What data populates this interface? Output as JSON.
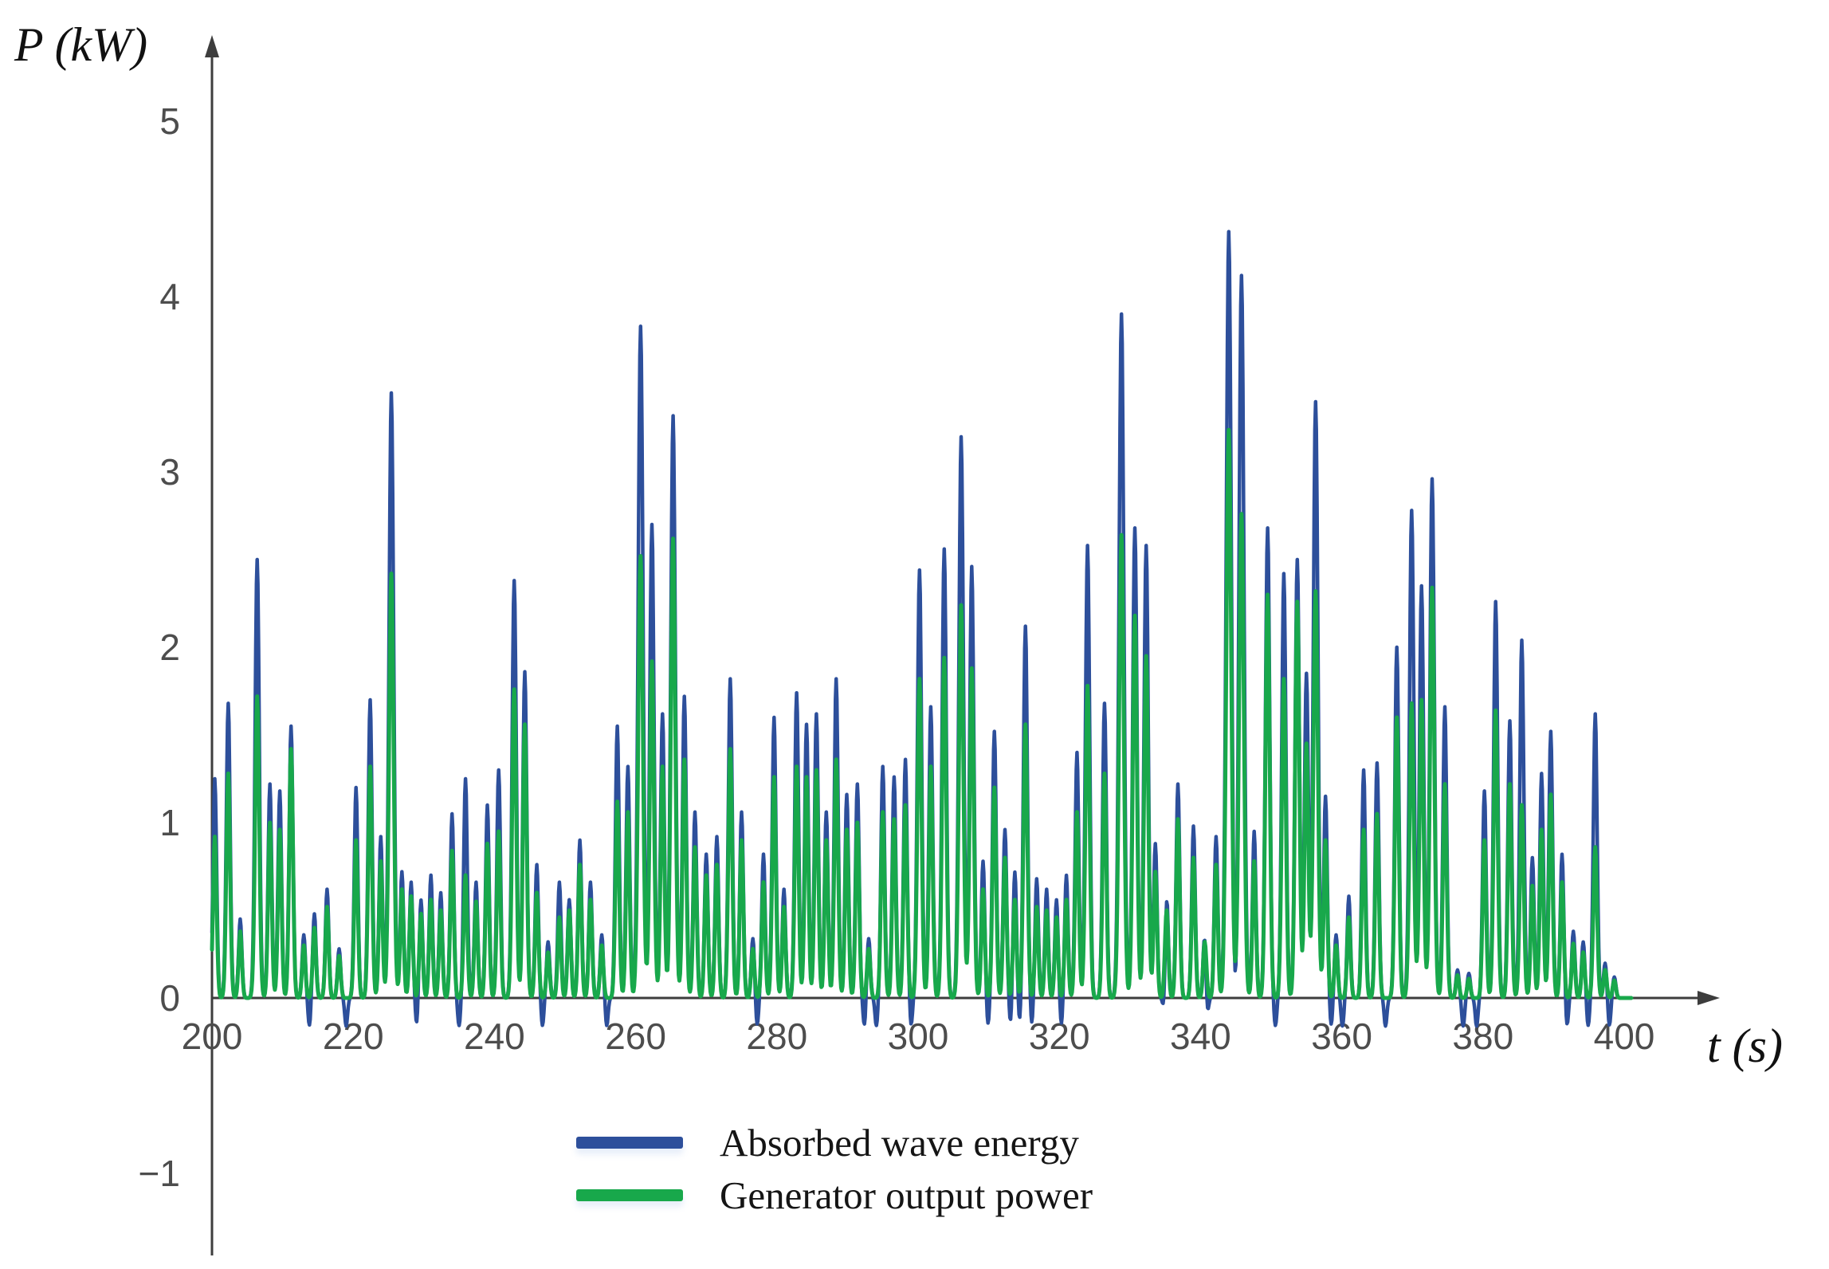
{
  "figure": {
    "background": "#ffffff",
    "axis_color": "#3d3d3d",
    "tick_label_color": "#4d4d4d"
  },
  "chart_data": {
    "type": "line",
    "title": "",
    "x_axis": {
      "title": "t (s)",
      "min": 200,
      "max": 400,
      "tick_values": [
        200,
        220,
        240,
        260,
        280,
        300,
        320,
        340,
        360,
        380,
        400
      ]
    },
    "y_axis": {
      "title": "P (kW)",
      "min": -1,
      "max": 5,
      "ticks": [
        {
          "value": 5,
          "label": "5"
        },
        {
          "value": 4,
          "label": "4"
        },
        {
          "value": 3,
          "label": "3"
        },
        {
          "value": 2,
          "label": "2"
        },
        {
          "value": 1,
          "label": "1"
        },
        {
          "value": 0,
          "label": "0"
        },
        {
          "value": -1,
          "label": "−1"
        }
      ]
    },
    "grid": false,
    "legend_position": "bottom",
    "series": [
      {
        "name": "Absorbed wave energy",
        "color": "#2D4F9B",
        "stroke_width": 4.5
      },
      {
        "name": "Generator output power",
        "color": "#18A84B",
        "stroke_width": 5
      }
    ],
    "pulses_format": [
      "t_s",
      "absorbed_kW_peak",
      "generator_kW_peak"
    ],
    "pulses": [
      [
        200.4,
        1.25,
        0.92
      ],
      [
        202.3,
        1.68,
        1.28
      ],
      [
        204.0,
        0.45,
        0.38
      ],
      [
        206.4,
        2.5,
        1.72
      ],
      [
        208.2,
        1.22,
        1.0
      ],
      [
        209.6,
        1.18,
        0.96
      ],
      [
        211.2,
        1.55,
        1.42
      ],
      [
        213.0,
        0.36,
        0.3
      ],
      [
        214.5,
        0.48,
        0.4
      ],
      [
        216.3,
        0.62,
        0.52
      ],
      [
        218.0,
        0.28,
        0.24
      ],
      [
        220.4,
        1.2,
        0.9
      ],
      [
        222.4,
        1.7,
        1.32
      ],
      [
        223.9,
        0.92,
        0.78
      ],
      [
        225.4,
        3.45,
        2.42
      ],
      [
        226.9,
        0.72,
        0.62
      ],
      [
        228.2,
        0.66,
        0.58
      ],
      [
        229.6,
        0.56,
        0.48
      ],
      [
        231.0,
        0.7,
        0.56
      ],
      [
        232.4,
        0.6,
        0.5
      ],
      [
        234.0,
        1.05,
        0.84
      ],
      [
        235.9,
        1.25,
        0.7
      ],
      [
        237.4,
        0.66,
        0.55
      ],
      [
        239.0,
        1.1,
        0.88
      ],
      [
        240.6,
        1.3,
        0.95
      ],
      [
        242.8,
        2.38,
        1.76
      ],
      [
        244.3,
        1.86,
        1.56
      ],
      [
        246.0,
        0.76,
        0.6
      ],
      [
        247.6,
        0.32,
        0.26
      ],
      [
        249.2,
        0.66,
        0.46
      ],
      [
        250.6,
        0.56,
        0.5
      ],
      [
        252.1,
        0.9,
        0.76
      ],
      [
        253.6,
        0.66,
        0.56
      ],
      [
        255.2,
        0.36,
        0.3
      ],
      [
        257.4,
        1.55,
        1.12
      ],
      [
        258.9,
        1.32,
        1.06
      ],
      [
        260.7,
        3.83,
        2.52
      ],
      [
        262.3,
        2.7,
        1.92
      ],
      [
        263.8,
        1.62,
        1.32
      ],
      [
        265.3,
        3.32,
        2.62
      ],
      [
        266.9,
        1.72,
        1.36
      ],
      [
        268.4,
        1.06,
        0.86
      ],
      [
        270.0,
        0.82,
        0.7
      ],
      [
        271.5,
        0.92,
        0.76
      ],
      [
        273.4,
        1.82,
        1.42
      ],
      [
        275.0,
        1.06,
        0.9
      ],
      [
        276.6,
        0.34,
        0.28
      ],
      [
        278.1,
        0.82,
        0.66
      ],
      [
        279.6,
        1.6,
        1.26
      ],
      [
        281.0,
        0.62,
        0.52
      ],
      [
        282.8,
        1.74,
        1.32
      ],
      [
        284.2,
        1.56,
        1.26
      ],
      [
        285.6,
        1.62,
        1.3
      ],
      [
        287.0,
        1.06,
        0.9
      ],
      [
        288.4,
        1.82,
        1.36
      ],
      [
        289.9,
        1.16,
        0.96
      ],
      [
        291.4,
        1.22,
        1.0
      ],
      [
        293.0,
        0.34,
        0.28
      ],
      [
        295.0,
        1.32,
        1.06
      ],
      [
        296.6,
        1.26,
        1.02
      ],
      [
        298.2,
        1.36,
        1.1
      ],
      [
        300.2,
        2.44,
        1.82
      ],
      [
        301.8,
        1.66,
        1.32
      ],
      [
        303.7,
        2.56,
        1.94
      ],
      [
        306.1,
        3.2,
        2.24
      ],
      [
        307.6,
        2.46,
        1.88
      ],
      [
        309.2,
        0.78,
        0.62
      ],
      [
        310.8,
        1.52,
        1.2
      ],
      [
        312.3,
        0.96,
        0.8
      ],
      [
        313.7,
        0.72,
        0.56
      ],
      [
        315.2,
        2.12,
        1.56
      ],
      [
        316.8,
        0.68,
        0.52
      ],
      [
        318.2,
        0.62,
        0.5
      ],
      [
        319.6,
        0.56,
        0.46
      ],
      [
        321.0,
        0.7,
        0.56
      ],
      [
        322.5,
        1.4,
        1.06
      ],
      [
        324.0,
        2.58,
        1.78
      ],
      [
        326.4,
        1.68,
        1.28
      ],
      [
        328.8,
        3.9,
        2.64
      ],
      [
        330.7,
        2.68,
        2.18
      ],
      [
        332.3,
        2.58,
        1.95
      ],
      [
        333.6,
        0.88,
        0.72
      ],
      [
        335.2,
        0.6,
        0.5
      ],
      [
        336.8,
        1.22,
        1.02
      ],
      [
        339.0,
        0.98,
        0.8
      ],
      [
        340.6,
        0.38,
        0.32
      ],
      [
        342.2,
        0.92,
        0.76
      ],
      [
        344.0,
        4.37,
        3.24
      ],
      [
        345.8,
        4.12,
        2.76
      ],
      [
        347.6,
        0.95,
        0.78
      ],
      [
        349.5,
        2.68,
        2.3
      ],
      [
        351.8,
        2.42,
        1.82
      ],
      [
        353.7,
        2.5,
        2.26
      ],
      [
        355.0,
        1.85,
        1.45
      ],
      [
        356.3,
        3.4,
        2.32
      ],
      [
        357.7,
        1.15,
        0.9
      ],
      [
        359.2,
        0.36,
        0.3
      ],
      [
        361.0,
        0.58,
        0.46
      ],
      [
        363.1,
        1.3,
        0.96
      ],
      [
        365.0,
        1.34,
        1.05
      ],
      [
        367.8,
        2.0,
        1.6
      ],
      [
        369.9,
        2.78,
        1.68
      ],
      [
        371.3,
        2.35,
        1.7
      ],
      [
        372.8,
        2.96,
        2.34
      ],
      [
        374.6,
        1.66,
        1.22
      ],
      [
        376.4,
        0.16,
        0.13
      ],
      [
        378.0,
        0.14,
        0.11
      ],
      [
        380.2,
        1.18,
        0.9
      ],
      [
        381.8,
        2.26,
        1.64
      ],
      [
        383.8,
        1.58,
        1.22
      ],
      [
        385.5,
        2.04,
        1.1
      ],
      [
        387.0,
        0.8,
        0.64
      ],
      [
        388.3,
        1.28,
        0.96
      ],
      [
        389.6,
        1.52,
        1.16
      ],
      [
        391.2,
        0.82,
        0.66
      ],
      [
        392.8,
        0.38,
        0.31
      ],
      [
        394.2,
        0.32,
        0.26
      ],
      [
        395.9,
        1.62,
        0.86
      ],
      [
        397.3,
        0.2,
        0.16
      ],
      [
        398.6,
        0.12,
        0.1
      ]
    ],
    "absorbed_undershoot_times": [
      213.8,
      219.0,
      229.0,
      235.0,
      246.8,
      255.9,
      277.2,
      292.4,
      294.1,
      299.0,
      309.9,
      313.1,
      314.4,
      316.1,
      320.3,
      334.9,
      340.9,
      345.0,
      350.6,
      358.5,
      360.1,
      366.2,
      377.2,
      379.1,
      391.9,
      394.9,
      397.9
    ],
    "model": {
      "sigma_base": 0.22,
      "sigma_per_amp": 0.03,
      "sample_step": 0.1,
      "dip_amp": 0.16,
      "dip_sigma": 0.2
    }
  },
  "legend": {
    "items": [
      {
        "label": "Absorbed wave energy",
        "color": "#2D4F9B"
      },
      {
        "label": "Generator output power",
        "color": "#18A84B"
      }
    ]
  }
}
